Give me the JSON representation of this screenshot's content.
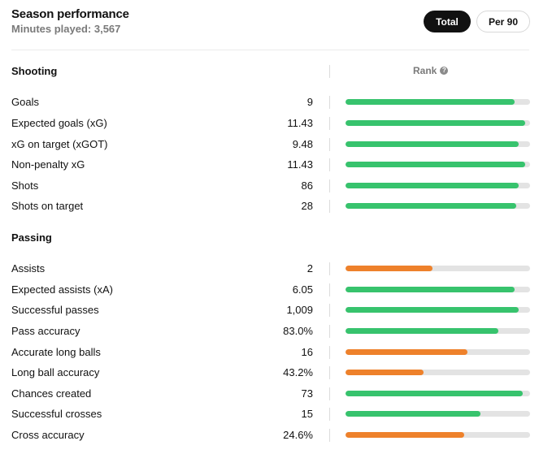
{
  "header": {
    "title": "Season performance",
    "subtitle": "Minutes played: 3,567",
    "toggles": {
      "total": "Total",
      "per90": "Per 90",
      "active": "total"
    }
  },
  "rank_header": "Rank",
  "colors": {
    "high": "#37c36d",
    "low": "#ee812b",
    "track": "#e3e3e3"
  },
  "sections": [
    {
      "title": "Shooting",
      "rows": [
        {
          "label": "Goals",
          "value": "9",
          "rank_fill": 0.915,
          "color": "high"
        },
        {
          "label": "Expected goals (xG)",
          "value": "11.43",
          "rank_fill": 0.975,
          "color": "high"
        },
        {
          "label": "xG on target (xGOT)",
          "value": "9.48",
          "rank_fill": 0.94,
          "color": "high"
        },
        {
          "label": "Non-penalty xG",
          "value": "11.43",
          "rank_fill": 0.975,
          "color": "high"
        },
        {
          "label": "Shots",
          "value": "86",
          "rank_fill": 0.94,
          "color": "high"
        },
        {
          "label": "Shots on target",
          "value": "28",
          "rank_fill": 0.925,
          "color": "high"
        }
      ]
    },
    {
      "title": "Passing",
      "rows": [
        {
          "label": "Assists",
          "value": "2",
          "rank_fill": 0.47,
          "color": "low"
        },
        {
          "label": "Expected assists (xA)",
          "value": "6.05",
          "rank_fill": 0.915,
          "color": "high"
        },
        {
          "label": "Successful passes",
          "value": "1,009",
          "rank_fill": 0.94,
          "color": "high"
        },
        {
          "label": "Pass accuracy",
          "value": "83.0%",
          "rank_fill": 0.83,
          "color": "high"
        },
        {
          "label": "Accurate long balls",
          "value": "16",
          "rank_fill": 0.66,
          "color": "low"
        },
        {
          "label": "Long ball accuracy",
          "value": "43.2%",
          "rank_fill": 0.425,
          "color": "low"
        },
        {
          "label": "Chances created",
          "value": "73",
          "rank_fill": 0.96,
          "color": "high"
        },
        {
          "label": "Successful crosses",
          "value": "15",
          "rank_fill": 0.73,
          "color": "high"
        },
        {
          "label": "Cross accuracy",
          "value": "24.6%",
          "rank_fill": 0.645,
          "color": "low"
        }
      ]
    }
  ]
}
